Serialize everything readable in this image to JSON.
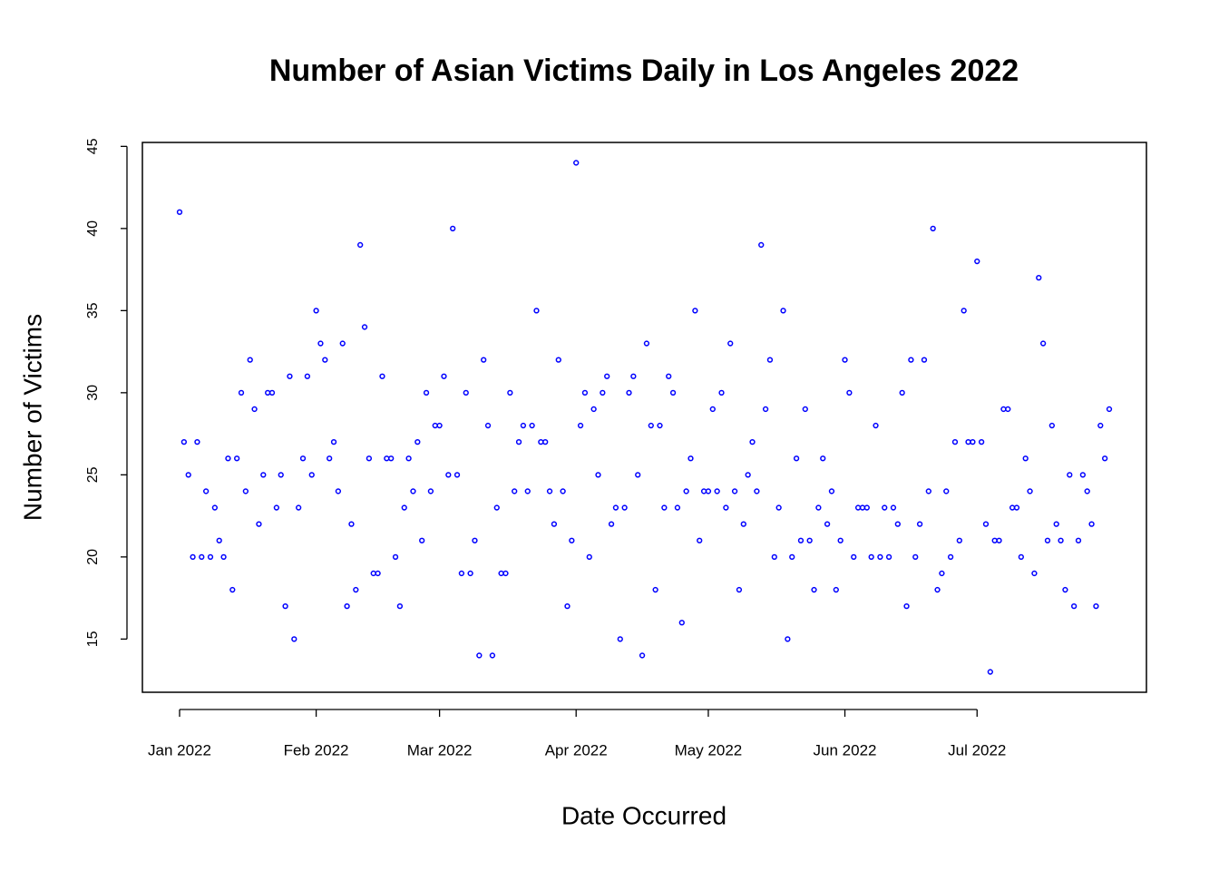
{
  "chart_data": {
    "type": "scatter",
    "title": "Number of Asian Victims Daily in Los Angeles 2022",
    "xlabel": "Date Occurred",
    "ylabel": "Number of Victims",
    "color": "#0000ff",
    "values": [
      41,
      27,
      25,
      20,
      27,
      20,
      24,
      20,
      23,
      21,
      20,
      26,
      18,
      26,
      30,
      24,
      32,
      29,
      22,
      25,
      30,
      30,
      23,
      25,
      17,
      31,
      15,
      23,
      26,
      31,
      25,
      35,
      33,
      32,
      26,
      27,
      24,
      33,
      17,
      22,
      18,
      39,
      34,
      26,
      19,
      19,
      31,
      26,
      26,
      20,
      17,
      23,
      26,
      24,
      27,
      21,
      30,
      24,
      28,
      28,
      31,
      25,
      40,
      25,
      19,
      30,
      19,
      21,
      14,
      32,
      28,
      14,
      23,
      19,
      19,
      30,
      24,
      27,
      28,
      24,
      28,
      35,
      27,
      27,
      24,
      22,
      32,
      24,
      17,
      21,
      44,
      28,
      30,
      20,
      29,
      25,
      30,
      31,
      22,
      23,
      15,
      23,
      30,
      31,
      25,
      14,
      33,
      28,
      18,
      28,
      23,
      31,
      30,
      23,
      16,
      24,
      26,
      35,
      21,
      24,
      24,
      29,
      24,
      30,
      23,
      33,
      24,
      18,
      22,
      25,
      27,
      24,
      39,
      29,
      32,
      20,
      23,
      35,
      15,
      20,
      26,
      21,
      29,
      21,
      18,
      23,
      26,
      22,
      24,
      18,
      21,
      32,
      30,
      20,
      23,
      23,
      23,
      20,
      28,
      20,
      23,
      20,
      23,
      22,
      30,
      17,
      32,
      20,
      22,
      32,
      24,
      40,
      18,
      19,
      24,
      20,
      27,
      21,
      35,
      27,
      27,
      38,
      27,
      22,
      13,
      21,
      21,
      29,
      29,
      23,
      23,
      20,
      26,
      24,
      19,
      37,
      33,
      21,
      28,
      22,
      21,
      18,
      25,
      17,
      21,
      25,
      24,
      22,
      17,
      28,
      26,
      29
    ],
    "xlim": [
      -8.44,
      219.44
    ],
    "xticks": [
      {
        "value": 0,
        "label": "Jan 2022"
      },
      {
        "value": 31,
        "label": "Feb 2022"
      },
      {
        "value": 59,
        "label": "Mar 2022"
      },
      {
        "value": 90,
        "label": "Apr 2022"
      },
      {
        "value": 120,
        "label": "May 2022"
      },
      {
        "value": 151,
        "label": "Jun 2022"
      },
      {
        "value": 181,
        "label": "Jul 2022"
      }
    ],
    "ylim": [
      11.76,
      45.24
    ],
    "yticks": [
      15,
      20,
      25,
      30,
      35,
      40,
      45
    ]
  }
}
